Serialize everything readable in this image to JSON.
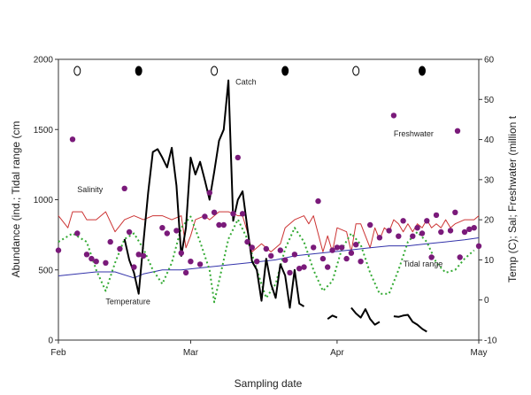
{
  "chart_data": {
    "type": "line",
    "xlabel": "Sampling date",
    "ylabel_left": "Abundance (ind.; Tidal range (cm",
    "ylabel_right": "Temp (C); Sal; Freshwater (million t",
    "x_domain": [
      0,
      89
    ],
    "x_ticks": [
      {
        "x": 0,
        "label": "Feb"
      },
      {
        "x": 28,
        "label": "Mar"
      },
      {
        "x": 59,
        "label": "Apr"
      },
      {
        "x": 89,
        "label": "May"
      }
    ],
    "ylim_left": [
      0,
      2000
    ],
    "yticks_left": [
      0,
      500,
      1000,
      1500,
      2000
    ],
    "ylim_right": [
      -10,
      60
    ],
    "yticks_right": [
      -10,
      0,
      10,
      20,
      30,
      40,
      50,
      60
    ],
    "grid": false,
    "moon_phases": [
      {
        "x": 4,
        "phase": "full"
      },
      {
        "x": 17,
        "phase": "new"
      },
      {
        "x": 33,
        "phase": "full"
      },
      {
        "x": 48,
        "phase": "new"
      },
      {
        "x": 63,
        "phase": "full"
      },
      {
        "x": 77,
        "phase": "new"
      }
    ],
    "annotations": [
      {
        "text": "Catch",
        "x": 37.5,
        "y": 1820
      },
      {
        "text": "Salinity",
        "x": 4,
        "y": 1055
      },
      {
        "text": "Freshwater",
        "x": 71,
        "y": 1450
      },
      {
        "text": "Tidal range",
        "x": 73,
        "y": 525
      },
      {
        "text": "Temperature",
        "x": 10,
        "y": 255
      }
    ],
    "series": [
      {
        "name": "Catch",
        "axis": "left",
        "color": "#000000",
        "segments": [
          [
            [
              14,
              720
            ],
            [
              15,
              570
            ],
            [
              16,
              480
            ],
            [
              17,
              330
            ],
            [
              18,
              700
            ],
            [
              19,
              1050
            ],
            [
              20,
              1340
            ],
            [
              21,
              1360
            ],
            [
              22,
              1300
            ],
            [
              23,
              1230
            ],
            [
              24,
              1370
            ],
            [
              25,
              1100
            ],
            [
              26,
              600
            ],
            [
              27,
              800
            ],
            [
              28,
              1300
            ],
            [
              29,
              1180
            ],
            [
              30,
              1270
            ],
            [
              31,
              1140
            ],
            [
              32,
              1000
            ],
            [
              33,
              1200
            ],
            [
              34,
              1420
            ],
            [
              35,
              1500
            ],
            [
              36,
              1850
            ],
            [
              37,
              850
            ],
            [
              38,
              1000
            ],
            [
              39,
              1060
            ],
            [
              40,
              800
            ],
            [
              41,
              560
            ],
            [
              42,
              500
            ],
            [
              43,
              280
            ],
            [
              44,
              580
            ],
            [
              45,
              400
            ],
            [
              46,
              300
            ],
            [
              47,
              540
            ],
            [
              48,
              460
            ],
            [
              49,
              230
            ],
            [
              50,
              500
            ],
            [
              51,
              260
            ],
            [
              52,
              240
            ]
          ],
          [
            [
              57,
              150
            ],
            [
              58,
              175
            ],
            [
              59,
              160
            ]
          ],
          [
            [
              62,
              230
            ],
            [
              63,
              190
            ],
            [
              64,
              160
            ],
            [
              65,
              220
            ],
            [
              66,
              150
            ],
            [
              67,
              110
            ],
            [
              68,
              130
            ]
          ],
          [
            [
              71,
              170
            ],
            [
              72,
              165
            ],
            [
              73,
              175
            ],
            [
              74,
              180
            ],
            [
              75,
              130
            ],
            [
              76,
              110
            ],
            [
              77,
              80
            ],
            [
              78,
              60
            ]
          ]
        ]
      },
      {
        "name": "Salinity",
        "axis": "right",
        "color": "#cc3333",
        "values": [
          [
            0,
            21
          ],
          [
            2,
            18
          ],
          [
            3,
            22
          ],
          [
            5,
            22
          ],
          [
            6,
            20
          ],
          [
            8,
            20
          ],
          [
            10,
            22
          ],
          [
            12,
            17
          ],
          [
            14,
            20
          ],
          [
            16,
            21
          ],
          [
            18,
            20
          ],
          [
            20,
            21
          ],
          [
            22,
            21
          ],
          [
            24,
            20
          ],
          [
            26,
            21
          ],
          [
            27,
            13
          ],
          [
            28,
            16
          ],
          [
            29,
            20
          ],
          [
            31,
            21
          ],
          [
            32,
            20
          ],
          [
            34,
            22
          ],
          [
            36,
            22
          ],
          [
            38,
            21
          ],
          [
            39,
            21
          ],
          [
            40,
            17
          ],
          [
            41,
            12
          ],
          [
            43,
            14
          ],
          [
            45,
            12
          ],
          [
            47,
            14
          ],
          [
            48,
            18
          ],
          [
            50,
            20
          ],
          [
            52,
            21
          ],
          [
            53,
            19
          ],
          [
            54,
            21
          ],
          [
            56,
            12
          ],
          [
            57,
            16
          ],
          [
            58,
            12
          ],
          [
            59,
            18
          ],
          [
            61,
            17
          ],
          [
            62,
            12
          ],
          [
            63,
            19
          ],
          [
            64,
            19
          ],
          [
            65,
            16
          ],
          [
            66,
            13
          ],
          [
            67,
            18
          ],
          [
            68,
            15
          ],
          [
            69,
            18
          ],
          [
            70,
            17
          ],
          [
            71,
            20
          ],
          [
            72,
            19
          ],
          [
            73,
            17
          ],
          [
            74,
            19
          ],
          [
            75,
            17
          ],
          [
            76,
            19
          ],
          [
            77,
            18
          ],
          [
            78,
            20
          ],
          [
            79,
            18
          ],
          [
            80,
            19
          ],
          [
            81,
            18
          ],
          [
            82,
            20
          ],
          [
            83,
            18
          ],
          [
            84,
            19
          ],
          [
            86,
            20
          ],
          [
            88,
            20
          ],
          [
            89,
            21
          ]
        ]
      },
      {
        "name": "Temperature",
        "axis": "right",
        "color": "#3333aa",
        "values": [
          [
            0,
            6
          ],
          [
            4,
            6.5
          ],
          [
            8,
            7
          ],
          [
            12,
            7
          ],
          [
            16,
            5.5
          ],
          [
            18,
            6.5
          ],
          [
            22,
            7.5
          ],
          [
            26,
            7.5
          ],
          [
            30,
            8
          ],
          [
            34,
            8.5
          ],
          [
            38,
            9
          ],
          [
            42,
            9.5
          ],
          [
            46,
            10
          ],
          [
            48,
            10.5
          ],
          [
            50,
            11
          ],
          [
            54,
            11.5
          ],
          [
            58,
            12
          ],
          [
            62,
            12.5
          ],
          [
            66,
            13
          ],
          [
            70,
            13.5
          ],
          [
            74,
            13.5
          ],
          [
            78,
            14
          ],
          [
            82,
            14.5
          ],
          [
            86,
            15
          ],
          [
            89,
            15.5
          ]
        ]
      },
      {
        "name": "Tidal range",
        "axis": "left",
        "color": "#33aa33",
        "values": [
          [
            0,
            700
          ],
          [
            3,
            760
          ],
          [
            6,
            700
          ],
          [
            8,
            500
          ],
          [
            10,
            350
          ],
          [
            12,
            550
          ],
          [
            14,
            720
          ],
          [
            16,
            760
          ],
          [
            18,
            650
          ],
          [
            20,
            500
          ],
          [
            22,
            400
          ],
          [
            24,
            550
          ],
          [
            26,
            800
          ],
          [
            28,
            880
          ],
          [
            30,
            700
          ],
          [
            32,
            500
          ],
          [
            33,
            270
          ],
          [
            34,
            420
          ],
          [
            36,
            720
          ],
          [
            38,
            860
          ],
          [
            40,
            720
          ],
          [
            42,
            500
          ],
          [
            44,
            300
          ],
          [
            46,
            400
          ],
          [
            48,
            650
          ],
          [
            50,
            800
          ],
          [
            52,
            700
          ],
          [
            54,
            500
          ],
          [
            56,
            350
          ],
          [
            58,
            420
          ],
          [
            60,
            650
          ],
          [
            62,
            760
          ],
          [
            64,
            680
          ],
          [
            66,
            480
          ],
          [
            68,
            330
          ],
          [
            70,
            330
          ],
          [
            72,
            500
          ],
          [
            74,
            700
          ],
          [
            76,
            770
          ],
          [
            78,
            700
          ],
          [
            80,
            550
          ],
          [
            82,
            480
          ],
          [
            84,
            500
          ],
          [
            86,
            580
          ],
          [
            88,
            640
          ]
        ]
      },
      {
        "name": "Freshwater",
        "axis": "left",
        "color": "#7a1a7a",
        "values": [
          [
            0,
            640
          ],
          [
            3,
            1430
          ],
          [
            4,
            760
          ],
          [
            6,
            610
          ],
          [
            7,
            580
          ],
          [
            8,
            560
          ],
          [
            10,
            550
          ],
          [
            11,
            700
          ],
          [
            13,
            650
          ],
          [
            14,
            1080
          ],
          [
            15,
            770
          ],
          [
            16,
            520
          ],
          [
            17,
            610
          ],
          [
            18,
            600
          ],
          [
            22,
            800
          ],
          [
            23,
            760
          ],
          [
            25,
            780
          ],
          [
            26,
            620
          ],
          [
            27,
            480
          ],
          [
            28,
            560
          ],
          [
            30,
            540
          ],
          [
            31,
            880
          ],
          [
            32,
            1050
          ],
          [
            33,
            910
          ],
          [
            34,
            820
          ],
          [
            35,
            820
          ],
          [
            37,
            900
          ],
          [
            38,
            1300
          ],
          [
            39,
            900
          ],
          [
            40,
            700
          ],
          [
            41,
            660
          ],
          [
            42,
            560
          ],
          [
            44,
            650
          ],
          [
            45,
            600
          ],
          [
            47,
            640
          ],
          [
            48,
            570
          ],
          [
            49,
            480
          ],
          [
            50,
            610
          ],
          [
            51,
            510
          ],
          [
            52,
            520
          ],
          [
            54,
            660
          ],
          [
            55,
            990
          ],
          [
            56,
            580
          ],
          [
            57,
            520
          ],
          [
            58,
            640
          ],
          [
            59,
            660
          ],
          [
            60,
            660
          ],
          [
            61,
            580
          ],
          [
            62,
            620
          ],
          [
            63,
            680
          ],
          [
            64,
            560
          ],
          [
            66,
            820
          ],
          [
            68,
            730
          ],
          [
            70,
            780
          ],
          [
            71,
            1600
          ],
          [
            72,
            740
          ],
          [
            73,
            850
          ],
          [
            75,
            740
          ],
          [
            76,
            800
          ],
          [
            77,
            760
          ],
          [
            78,
            850
          ],
          [
            79,
            590
          ],
          [
            80,
            890
          ],
          [
            81,
            770
          ],
          [
            83,
            780
          ],
          [
            84,
            910
          ],
          [
            84.5,
            1490
          ],
          [
            85,
            590
          ],
          [
            86,
            770
          ],
          [
            87,
            790
          ],
          [
            88,
            800
          ],
          [
            89,
            670
          ]
        ]
      }
    ]
  }
}
